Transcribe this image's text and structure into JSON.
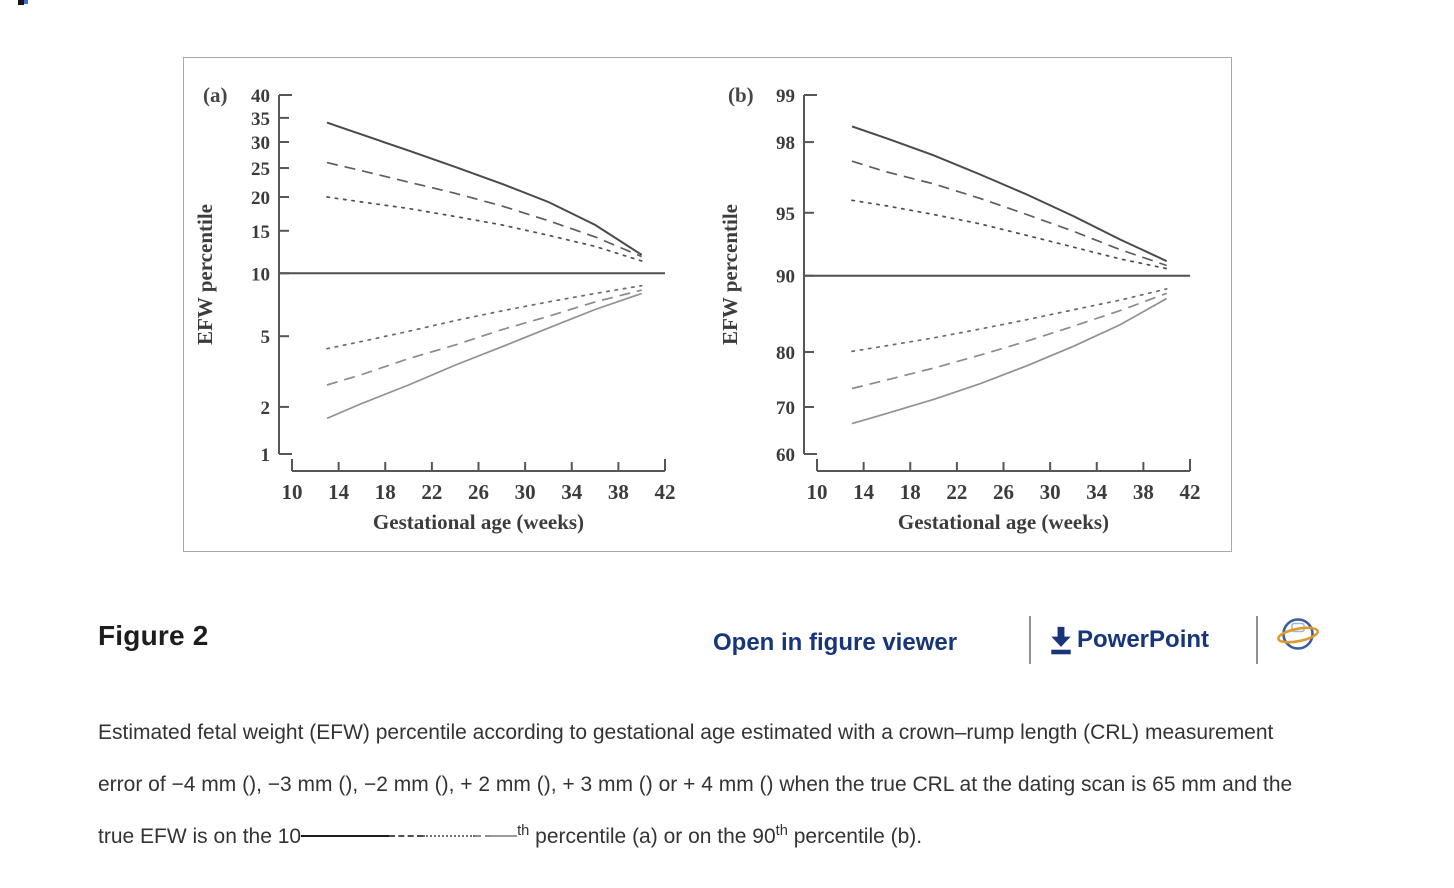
{
  "figure": {
    "title": "Figure 2"
  },
  "links": {
    "open_viewer": "Open in figure viewer",
    "powerpoint": "PowerPoint"
  },
  "caption": {
    "text_before_styles": "Estimated fetal weight (EFW) percentile according to gestational age estimated with a crown–rump length (CRL) measurement error of −4 mm (), −3 mm (), −2 mm (), + 2 mm (), + 3 mm () or + 4 mm () when the true CRL at the dating scan is 65 mm and the true EFW is on the ",
    "percentile_10": "10",
    "sup_th_1": "th",
    "text_middle": " percentile (a) or on the 90",
    "sup_th_2": "th",
    "text_after": " percentile (b)."
  },
  "colors": {
    "link_navy": "#16357a",
    "caption_text": "#333333",
    "figure_border": "#a9a9a9",
    "chart_ink": "#565656",
    "logo_blue": "#3d5e9e",
    "logo_orange": "#dd9a33"
  },
  "chart_data": [
    {
      "type": "line",
      "panel_label": "(a)",
      "xlabel": "Gestational age (weeks)",
      "ylabel": "EFW percentile",
      "y_scale": "probit",
      "xlim": [
        10,
        42
      ],
      "x_ticks": [
        10,
        14,
        18,
        22,
        26,
        30,
        34,
        38,
        42
      ],
      "y_ticks": [
        40,
        35,
        30,
        25,
        20,
        15,
        10,
        5,
        2,
        1
      ],
      "median_line": 10,
      "grid": false,
      "legend": "none",
      "x": [
        13,
        16,
        20,
        24,
        28,
        32,
        36,
        40
      ],
      "series": [
        {
          "name": "CRL error −4 mm",
          "style": "solid",
          "color": "#4a4a4a",
          "values": [
            34.0,
            31.5,
            28.3,
            25.2,
            22.2,
            19.2,
            15.8,
            12.0
          ]
        },
        {
          "name": "CRL error −3 mm",
          "style": "dashed",
          "color": "#5e5e5e",
          "values": [
            26.0,
            24.5,
            22.5,
            20.6,
            18.6,
            16.4,
            14.2,
            11.8
          ]
        },
        {
          "name": "CRL error −2 mm",
          "style": "dotted",
          "color": "#4f4f4f",
          "values": [
            20.0,
            19.2,
            18.2,
            17.0,
            15.8,
            14.4,
            13.0,
            11.3
          ]
        },
        {
          "name": "CRL error +2 mm",
          "style": "dotted",
          "color": "#6b6b6b",
          "values": [
            4.3,
            4.7,
            5.3,
            6.0,
            6.7,
            7.4,
            8.1,
            8.8
          ]
        },
        {
          "name": "CRL error +3 mm",
          "style": "dashed",
          "color": "#8c8c8c",
          "values": [
            2.7,
            3.1,
            3.8,
            4.5,
            5.4,
            6.3,
            7.4,
            8.4
          ]
        },
        {
          "name": "CRL error +4 mm",
          "style": "solid",
          "color": "#919191",
          "values": [
            1.7,
            2.1,
            2.7,
            3.5,
            4.4,
            5.5,
            6.8,
            8.1
          ]
        }
      ]
    },
    {
      "type": "line",
      "panel_label": "(b)",
      "xlabel": "Gestational age (weeks)",
      "ylabel": "EFW percentile",
      "y_scale": "probit",
      "xlim": [
        10,
        42
      ],
      "x_ticks": [
        10,
        14,
        18,
        22,
        26,
        30,
        34,
        38,
        42
      ],
      "y_ticks": [
        99,
        98,
        95,
        90,
        80,
        70,
        60
      ],
      "median_line": 90,
      "grid": false,
      "legend": "none",
      "x": [
        13,
        16,
        20,
        24,
        28,
        32,
        36,
        40
      ],
      "series": [
        {
          "name": "CRL error −4 mm",
          "style": "solid",
          "color": "#4a4a4a",
          "values": [
            98.4,
            98.1,
            97.6,
            96.9,
            96.0,
            94.8,
            93.2,
            91.4
          ]
        },
        {
          "name": "CRL error −3 mm",
          "style": "dashed",
          "color": "#5e5e5e",
          "values": [
            97.4,
            97.0,
            96.5,
            95.8,
            94.9,
            93.8,
            92.4,
            91.0
          ]
        },
        {
          "name": "CRL error −2 mm",
          "style": "dotted",
          "color": "#4f4f4f",
          "values": [
            95.7,
            95.4,
            94.9,
            94.3,
            93.5,
            92.6,
            91.6,
            90.7
          ]
        },
        {
          "name": "CRL error +2 mm",
          "style": "dotted",
          "color": "#6b6b6b",
          "values": [
            80.1,
            81.0,
            82.2,
            83.5,
            84.8,
            86.1,
            87.3,
            88.6
          ]
        },
        {
          "name": "CRL error +3 mm",
          "style": "dashed",
          "color": "#8c8c8c",
          "values": [
            73.6,
            75.2,
            77.3,
            79.5,
            81.7,
            83.9,
            86.0,
            88.1
          ]
        },
        {
          "name": "CRL error +4 mm",
          "style": "solid",
          "color": "#919191",
          "values": [
            66.6,
            68.7,
            71.5,
            74.5,
            77.7,
            80.9,
            84.1,
            87.5
          ]
        }
      ]
    }
  ]
}
